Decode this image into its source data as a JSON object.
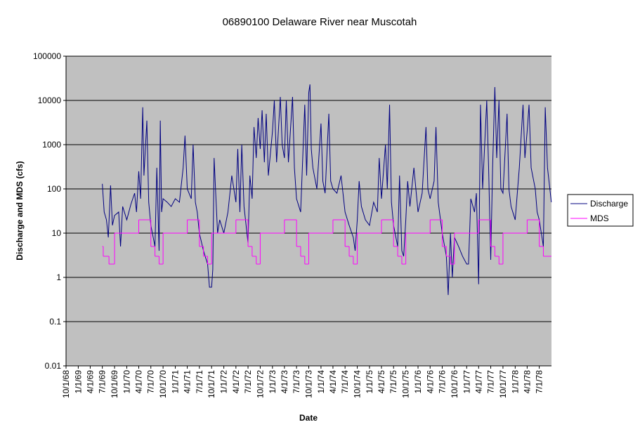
{
  "chart_data": {
    "type": "line",
    "title": "06890100 Delaware River near Muscotah",
    "x_label": "Date",
    "y_label": "Discharge and MDS (cfs)",
    "log_y": true,
    "grid": true,
    "legend": "right",
    "xlim": [
      "10/1/68",
      "10/1/78"
    ],
    "xticks": [
      "10/1/68",
      "1/1/69",
      "4/1/69",
      "7/1/69",
      "10/1/69",
      "1/1/70",
      "4/1/70",
      "7/1/70",
      "10/1/70",
      "1/1/71",
      "4/1/71",
      "7/1/71",
      "10/1/71",
      "1/1/72",
      "4/1/72",
      "7/1/72",
      "10/1/72",
      "1/1/73",
      "4/1/73",
      "7/1/73",
      "10/1/73",
      "1/1/74",
      "4/1/74",
      "7/1/74",
      "10/1/74",
      "1/1/75",
      "4/1/75",
      "7/1/75",
      "10/1/75",
      "1/1/76",
      "4/1/76",
      "7/1/76",
      "10/1/76",
      "1/1/77",
      "4/1/77",
      "7/1/77",
      "10/1/77",
      "1/1/78",
      "4/1/78",
      "7/1/78"
    ],
    "ylim": [
      0.01,
      100000
    ],
    "yticks": [
      0.01,
      0.1,
      1,
      10,
      100,
      1000,
      10000,
      100000
    ],
    "series": [
      {
        "name": "Discharge",
        "color": "#000080",
        "style": "line",
        "x": [
          "7/1/69",
          "7/15/69",
          "8/1/69",
          "8/15/69",
          "9/1/69",
          "9/15/69",
          "10/1/69",
          "11/1/69",
          "11/15/69",
          "12/1/69",
          "1/1/70",
          "2/1/70",
          "3/1/70",
          "3/15/70",
          "4/1/70",
          "4/15/70",
          "5/1/70",
          "5/10/70",
          "6/1/70",
          "6/15/70",
          "7/1/70",
          "8/1/70",
          "8/15/70",
          "9/1/70",
          "9/10/70",
          "9/20/70",
          "10/1/70",
          "11/1/70",
          "12/1/70",
          "1/1/71",
          "2/1/71",
          "3/1/71",
          "3/15/71",
          "4/1/71",
          "5/1/71",
          "5/15/71",
          "6/1/71",
          "6/15/71",
          "7/1/71",
          "8/1/71",
          "9/1/71",
          "9/15/71",
          "10/1/71",
          "10/10/71",
          "10/20/71",
          "11/1/71",
          "11/15/71",
          "12/1/71",
          "1/1/72",
          "2/1/72",
          "3/1/72",
          "4/1/72",
          "4/15/72",
          "5/1/72",
          "5/15/72",
          "6/1/72",
          "7/1/72",
          "7/15/72",
          "8/1/72",
          "8/15/72",
          "9/1/72",
          "9/15/72",
          "10/1/72",
          "10/15/72",
          "11/1/72",
          "11/15/72",
          "12/1/72",
          "1/1/73",
          "1/15/73",
          "2/1/73",
          "3/1/73",
          "3/15/73",
          "4/1/73",
          "4/15/73",
          "5/1/73",
          "6/1/73",
          "6/15/73",
          "7/1/73",
          "8/1/73",
          "9/1/73",
          "9/15/73",
          "10/1/73",
          "10/10/73",
          "10/20/73",
          "11/1/73",
          "12/1/73",
          "1/1/74",
          "1/15/74",
          "2/1/74",
          "3/1/74",
          "3/15/74",
          "4/1/74",
          "5/1/74",
          "6/1/74",
          "7/1/74",
          "8/1/74",
          "9/1/74",
          "9/15/74",
          "10/1/74",
          "10/15/74",
          "11/1/74",
          "12/1/74",
          "1/1/75",
          "2/1/75",
          "3/1/75",
          "3/15/75",
          "4/1/75",
          "5/1/75",
          "5/15/75",
          "6/1/75",
          "6/15/75",
          "7/1/75",
          "8/1/75",
          "8/15/75",
          "9/1/75",
          "9/15/75",
          "10/1/75",
          "10/15/75",
          "11/1/75",
          "12/1/75",
          "1/1/76",
          "2/1/76",
          "3/1/76",
          "3/15/76",
          "4/1/76",
          "5/1/76",
          "5/15/76",
          "6/1/76",
          "7/1/76",
          "8/1/76",
          "8/15/76",
          "9/1/76",
          "9/15/76",
          "10/1/76",
          "11/1/76",
          "12/1/76",
          "1/1/77",
          "1/15/77",
          "2/1/77",
          "3/1/77",
          "3/15/77",
          "4/1/77",
          "4/15/77",
          "5/1/77",
          "6/1/77",
          "6/15/77",
          "7/1/77",
          "7/15/77",
          "8/1/77",
          "8/15/77",
          "9/1/77",
          "9/15/77",
          "10/1/77",
          "11/1/77",
          "11/15/77",
          "12/1/77",
          "1/1/78",
          "2/1/78",
          "3/1/78",
          "3/15/78",
          "4/1/78",
          "4/15/78",
          "5/1/78",
          "6/1/78",
          "6/15/78",
          "7/1/78",
          "8/1/78",
          "8/15/78",
          "9/1/78",
          "9/30/78"
        ],
        "values": [
          130,
          30,
          20,
          8,
          120,
          15,
          25,
          30,
          5,
          40,
          20,
          45,
          80,
          30,
          250,
          60,
          7000,
          200,
          3500,
          50,
          15,
          5,
          300,
          4,
          3500,
          30,
          60,
          50,
          40,
          60,
          50,
          300,
          1600,
          100,
          60,
          1000,
          50,
          30,
          10,
          4,
          2,
          0.6,
          0.6,
          1.5,
          500,
          80,
          10,
          20,
          10,
          30,
          200,
          50,
          800,
          30,
          1000,
          40,
          6,
          200,
          60,
          2500,
          500,
          4000,
          800,
          6000,
          400,
          5000,
          200,
          2000,
          10000,
          400,
          12000,
          1000,
          500,
          10000,
          400,
          12000,
          300,
          60,
          30,
          8000,
          200,
          15000,
          23000,
          800,
          300,
          100,
          3000,
          150,
          80,
          5000,
          150,
          100,
          80,
          200,
          30,
          15,
          8,
          4,
          20,
          150,
          40,
          20,
          15,
          50,
          30,
          500,
          60,
          1000,
          100,
          8000,
          50,
          15,
          5,
          200,
          4,
          3,
          20,
          150,
          40,
          300,
          30,
          80,
          2500,
          100,
          60,
          150,
          2500,
          50,
          10,
          3,
          0.4,
          10,
          1,
          8,
          5,
          3,
          2,
          2,
          60,
          30,
          80,
          0.7,
          8000,
          100,
          10000,
          300,
          2.5,
          300,
          20000,
          500,
          10000,
          100,
          80,
          5000,
          100,
          40,
          20,
          300,
          8000,
          500,
          2000,
          8000,
          300,
          100,
          30,
          20,
          5,
          7000,
          300,
          50
        ]
      },
      {
        "name": "MDS",
        "color": "#ff00ff",
        "style": "step",
        "x": [
          "7/1/69",
          "7/8/69",
          "8/20/69",
          "10/1/69",
          "4/1/70",
          "7/1/70",
          "8/1/70",
          "9/1/70",
          "10/1/70",
          "4/1/71",
          "7/1/71",
          "8/1/71",
          "9/1/71",
          "10/1/71",
          "4/1/72",
          "7/1/72",
          "8/1/72",
          "9/1/72",
          "10/1/72",
          "4/1/73",
          "7/1/73",
          "8/1/73",
          "9/1/73",
          "10/1/73",
          "4/1/74",
          "7/1/74",
          "8/1/74",
          "9/1/74",
          "10/1/74",
          "4/1/75",
          "7/1/75",
          "8/1/75",
          "9/1/75",
          "10/1/75",
          "4/1/76",
          "7/1/76",
          "8/1/76",
          "9/1/76",
          "10/1/76",
          "4/1/77",
          "7/1/77",
          "8/1/77",
          "9/1/77",
          "10/1/77",
          "4/1/78",
          "7/1/78",
          "8/1/78"
        ],
        "values": [
          5,
          3,
          2,
          10,
          20,
          5,
          3,
          2,
          10,
          20,
          5,
          3,
          2,
          10,
          20,
          5,
          3,
          2,
          10,
          20,
          5,
          3,
          2,
          10,
          20,
          5,
          3,
          2,
          10,
          20,
          5,
          3,
          2,
          10,
          20,
          5,
          3,
          2,
          10,
          20,
          5,
          3,
          2,
          10,
          20,
          5,
          3
        ]
      }
    ]
  }
}
